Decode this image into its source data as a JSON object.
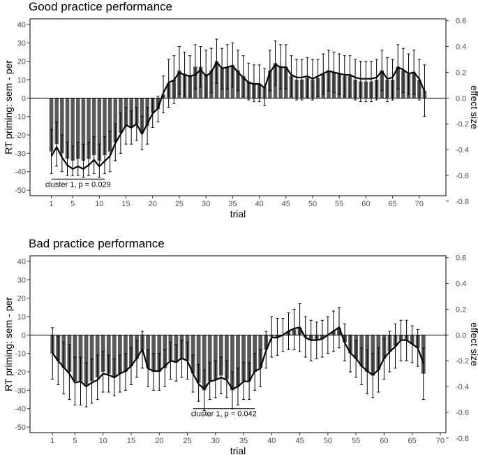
{
  "chart_data": [
    {
      "type": "bar",
      "title": "Good practice performance",
      "xlabel": "trial",
      "ylabel": "RT priming: sem - per",
      "y2label": "effect size",
      "n_trials": 71,
      "xlim": [
        -3,
        75
      ],
      "xticks": [
        1,
        5,
        10,
        15,
        20,
        25,
        30,
        35,
        40,
        45,
        50,
        55,
        60,
        65,
        70
      ],
      "ylim": [
        -53,
        43
      ],
      "yticks": [
        -50,
        -40,
        -30,
        -20,
        -10,
        0,
        10,
        20,
        30,
        40
      ],
      "y2ticks": [
        -0.8,
        -0.6,
        -0.4,
        -0.2,
        0.0,
        0.2,
        0.4,
        0.6
      ],
      "y2tick_labels": [
        "-0.8",
        "-0.6",
        "-0.4",
        "-0.2",
        "0.0",
        "0.2",
        "0.4",
        "0.6"
      ],
      "y2_scale": 0.0143,
      "grid": false,
      "values": [
        -29,
        -25,
        -30,
        -33,
        -34,
        -33,
        -34,
        -33,
        -31,
        -34,
        -31,
        -29,
        -24,
        -19,
        -15,
        -16,
        -14,
        -19,
        -15,
        -8,
        -6,
        2,
        8,
        10,
        15,
        13,
        12,
        17,
        17,
        13,
        15,
        20,
        16,
        17,
        18,
        15,
        12,
        9,
        8,
        8,
        6,
        15,
        19,
        17,
        17,
        12,
        10,
        10,
        11,
        10,
        11,
        13,
        15,
        14,
        13,
        12,
        12,
        10,
        9,
        9,
        9,
        10,
        15,
        10,
        10,
        17,
        15,
        13,
        14,
        10,
        4
      ],
      "errors": [
        12,
        12,
        10,
        9,
        8,
        9,
        9,
        9,
        10,
        9,
        10,
        11,
        10,
        11,
        10,
        9,
        9,
        9,
        10,
        8,
        7,
        10,
        13,
        13,
        13,
        12,
        11,
        12,
        11,
        13,
        12,
        12,
        11,
        12,
        12,
        11,
        11,
        10,
        10,
        10,
        10,
        11,
        12,
        12,
        12,
        11,
        11,
        11,
        11,
        11,
        10,
        11,
        11,
        11,
        11,
        11,
        11,
        11,
        11,
        11,
        11,
        11,
        11,
        12,
        11,
        12,
        12,
        11,
        12,
        11,
        14
      ],
      "effect_size_line": [
        -0.45,
        -0.38,
        -0.46,
        -0.52,
        -0.55,
        -0.53,
        -0.55,
        -0.52,
        -0.48,
        -0.53,
        -0.49,
        -0.45,
        -0.35,
        -0.28,
        -0.21,
        -0.23,
        -0.2,
        -0.28,
        -0.2,
        -0.12,
        -0.08,
        0.04,
        0.12,
        0.14,
        0.2,
        0.18,
        0.17,
        0.18,
        0.22,
        0.17,
        0.2,
        0.28,
        0.23,
        0.24,
        0.25,
        0.2,
        0.16,
        0.12,
        0.11,
        0.11,
        0.08,
        0.2,
        0.26,
        0.24,
        0.24,
        0.18,
        0.16,
        0.16,
        0.17,
        0.15,
        0.17,
        0.19,
        0.21,
        0.2,
        0.19,
        0.18,
        0.18,
        0.16,
        0.15,
        0.15,
        0.15,
        0.16,
        0.21,
        0.15,
        0.16,
        0.24,
        0.22,
        0.19,
        0.2,
        0.15,
        0.05
      ],
      "annotation": {
        "text": "cluster 1, p = 0.029",
        "x_start": 1,
        "x_end": 11,
        "y": -44
      }
    },
    {
      "type": "bar",
      "title": "Bad practice performance",
      "xlabel": "trial",
      "ylabel": "RT priming: sem - per",
      "y2label": "effect size",
      "n_trials": 67,
      "xlim": [
        -3,
        71
      ],
      "xticks": [
        1,
        5,
        10,
        15,
        20,
        25,
        30,
        35,
        40,
        45,
        50,
        55,
        60,
        65,
        70
      ],
      "ylim": [
        -53,
        43
      ],
      "yticks": [
        -50,
        -40,
        -30,
        -20,
        -10,
        0,
        10,
        20,
        30,
        40
      ],
      "y2ticks": [
        -0.8,
        -0.6,
        -0.4,
        -0.2,
        0.0,
        0.2,
        0.4,
        0.6
      ],
      "y2tick_labels": [
        "-0.8",
        "-0.6",
        "-0.4",
        "-0.2",
        "0.0",
        "0.2",
        "0.4",
        "0.6"
      ],
      "y2_scale": 0.0143,
      "grid": false,
      "values": [
        -10,
        -14,
        -18,
        -20,
        -25,
        -25,
        -27,
        -25,
        -23,
        -20,
        -21,
        -23,
        -21,
        -20,
        -17,
        -13,
        -8,
        -18,
        -20,
        -20,
        -18,
        -14,
        -15,
        -13,
        -14,
        -21,
        -26,
        -30,
        -25,
        -24,
        -22,
        -24,
        -30,
        -28,
        -25,
        -25,
        -20,
        -18,
        -8,
        -1,
        -1,
        0,
        2,
        3,
        4,
        -1,
        -3,
        -3,
        -2,
        0,
        2,
        4,
        -4,
        -10,
        -13,
        -17,
        -20,
        -22,
        -19,
        -13,
        -9,
        -6,
        -3,
        -3,
        -5,
        -7,
        -21
      ],
      "errors": [
        14,
        13,
        14,
        15,
        13,
        13,
        12,
        12,
        12,
        11,
        10,
        10,
        10,
        10,
        10,
        10,
        10,
        10,
        10,
        10,
        10,
        10,
        10,
        10,
        10,
        10,
        10,
        11,
        10,
        10,
        10,
        10,
        10,
        10,
        10,
        10,
        10,
        10,
        10,
        11,
        10,
        9,
        10,
        11,
        13,
        11,
        11,
        10,
        10,
        10,
        11,
        11,
        10,
        10,
        10,
        10,
        12,
        12,
        12,
        11,
        11,
        12,
        11,
        11,
        10,
        10,
        14
      ],
      "effect_size_line": [
        -0.14,
        -0.2,
        -0.25,
        -0.3,
        -0.37,
        -0.36,
        -0.4,
        -0.37,
        -0.35,
        -0.3,
        -0.31,
        -0.33,
        -0.3,
        -0.28,
        -0.24,
        -0.18,
        -0.11,
        -0.26,
        -0.28,
        -0.28,
        -0.24,
        -0.2,
        -0.21,
        -0.18,
        -0.2,
        -0.3,
        -0.38,
        -0.42,
        -0.36,
        -0.35,
        -0.33,
        -0.35,
        -0.42,
        -0.4,
        -0.36,
        -0.36,
        -0.28,
        -0.26,
        -0.12,
        -0.02,
        -0.02,
        0.0,
        0.03,
        0.05,
        0.06,
        -0.02,
        -0.04,
        -0.04,
        -0.03,
        0.0,
        0.03,
        0.06,
        -0.06,
        -0.14,
        -0.18,
        -0.24,
        -0.28,
        -0.31,
        -0.27,
        -0.18,
        -0.13,
        -0.09,
        -0.04,
        -0.04,
        -0.07,
        -0.1,
        -0.22
      ],
      "annotation": {
        "text": "cluster 1, p = 0.042",
        "x_start": 26,
        "x_end": 37,
        "y": -40
      }
    }
  ]
}
